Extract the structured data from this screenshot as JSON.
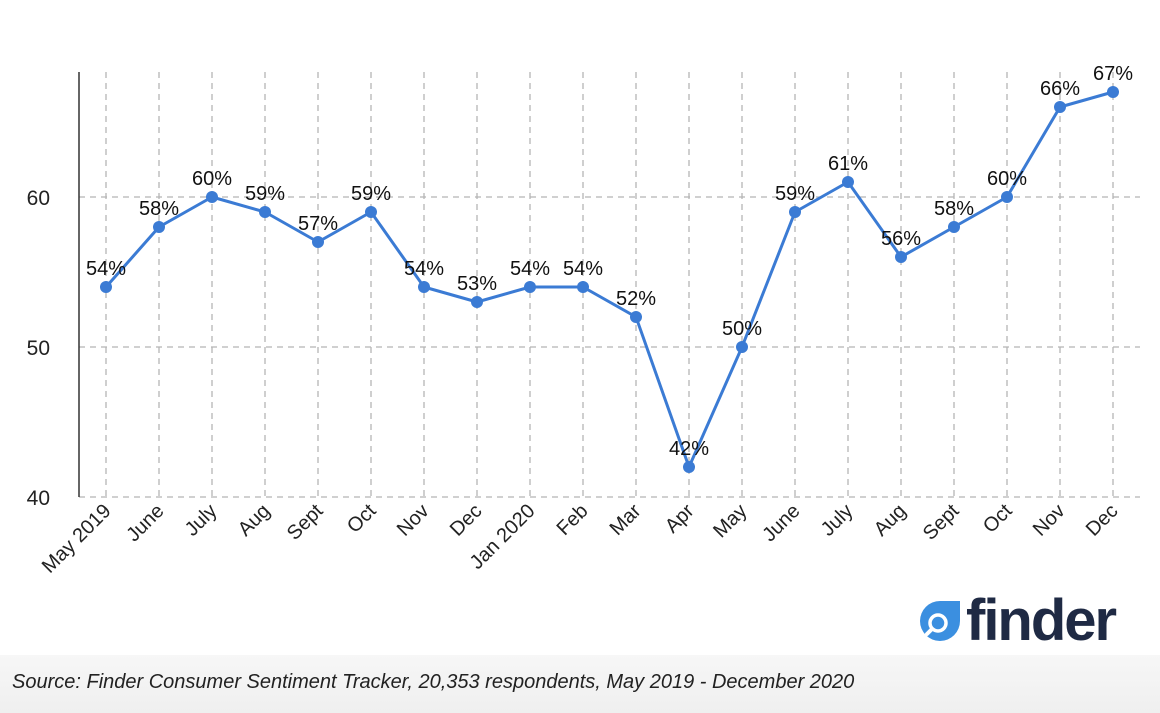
{
  "chart_data": {
    "type": "line",
    "categories": [
      "May 2019",
      "June",
      "July",
      "Aug",
      "Sept",
      "Oct",
      "Nov",
      "Dec",
      "Jan 2020",
      "Feb",
      "Mar",
      "Apr",
      "May",
      "June",
      "July",
      "Aug",
      "Sept",
      "Oct",
      "Nov",
      "Dec"
    ],
    "series": [
      {
        "values": [
          54,
          58,
          60,
          59,
          57,
          59,
          54,
          53,
          54,
          54,
          52,
          42,
          50,
          59,
          61,
          56,
          58,
          60,
          66,
          67
        ],
        "labels": [
          "54%",
          "58%",
          "60%",
          "59%",
          "57%",
          "59%",
          "54%",
          "53%",
          "54%",
          "54%",
          "52%",
          "42%",
          "50%",
          "59%",
          "61%",
          "56%",
          "58%",
          "60%",
          "66%",
          "67%"
        ]
      }
    ],
    "ylim": [
      40,
      68
    ],
    "yticks": [
      40,
      50,
      60
    ],
    "grid": true,
    "line_color": "#3b7bd4"
  },
  "logo": {
    "text": "finder",
    "icon": "magnifier-icon",
    "color": "#1f2a44",
    "accent": "#3b8fe0"
  },
  "source": "Source: Finder Consumer Sentiment Tracker, 20,353 respondents, May 2019 - December 2020"
}
